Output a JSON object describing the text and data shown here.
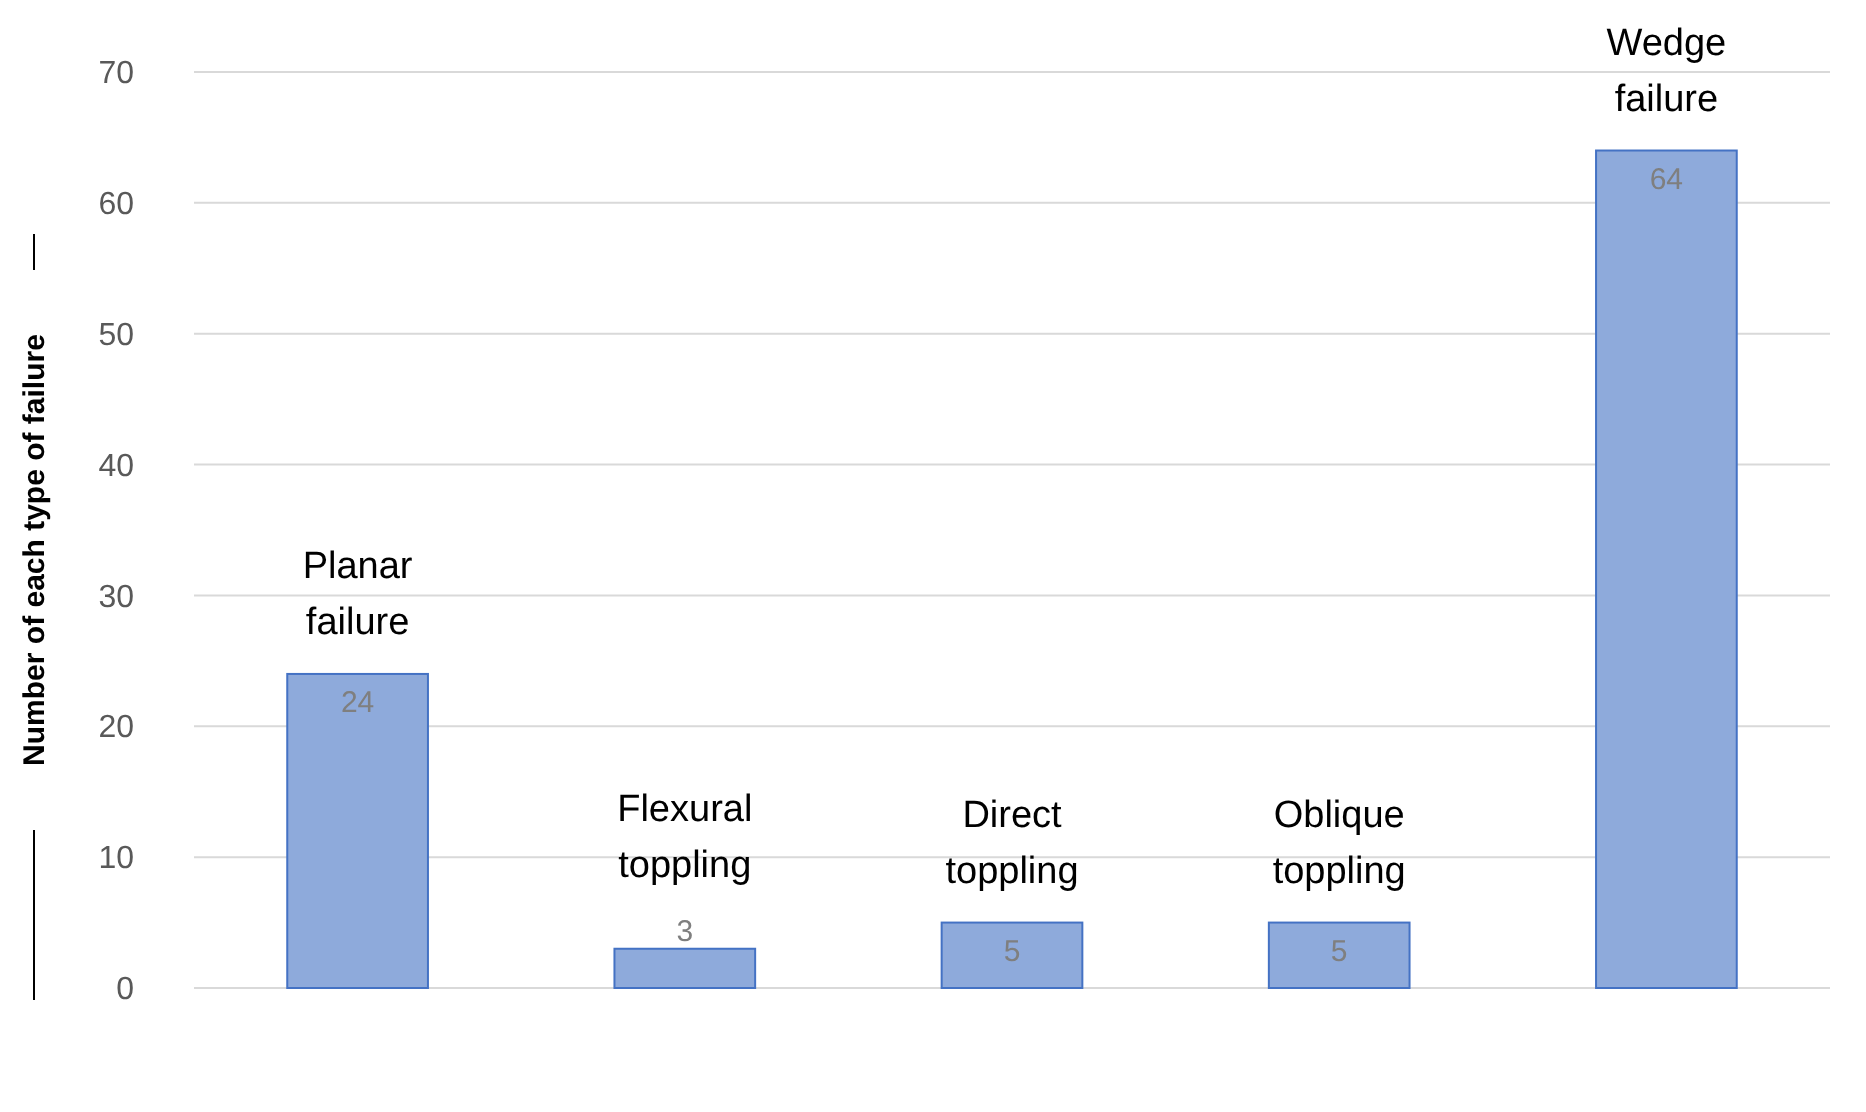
{
  "chart_data": {
    "type": "bar",
    "ylabel": "Number of each type of failure",
    "categories": [
      "Planar failure",
      "Flexural toppling",
      "Direct toppling",
      "Oblique toppling",
      "Wedge failure"
    ],
    "values": [
      24,
      3,
      5,
      5,
      64
    ],
    "color": "#8eaadb",
    "ylim": [
      0,
      70
    ],
    "yticks": [
      0,
      10,
      20,
      30,
      40,
      50,
      60,
      70
    ],
    "grid": "y",
    "data_labels": true
  }
}
